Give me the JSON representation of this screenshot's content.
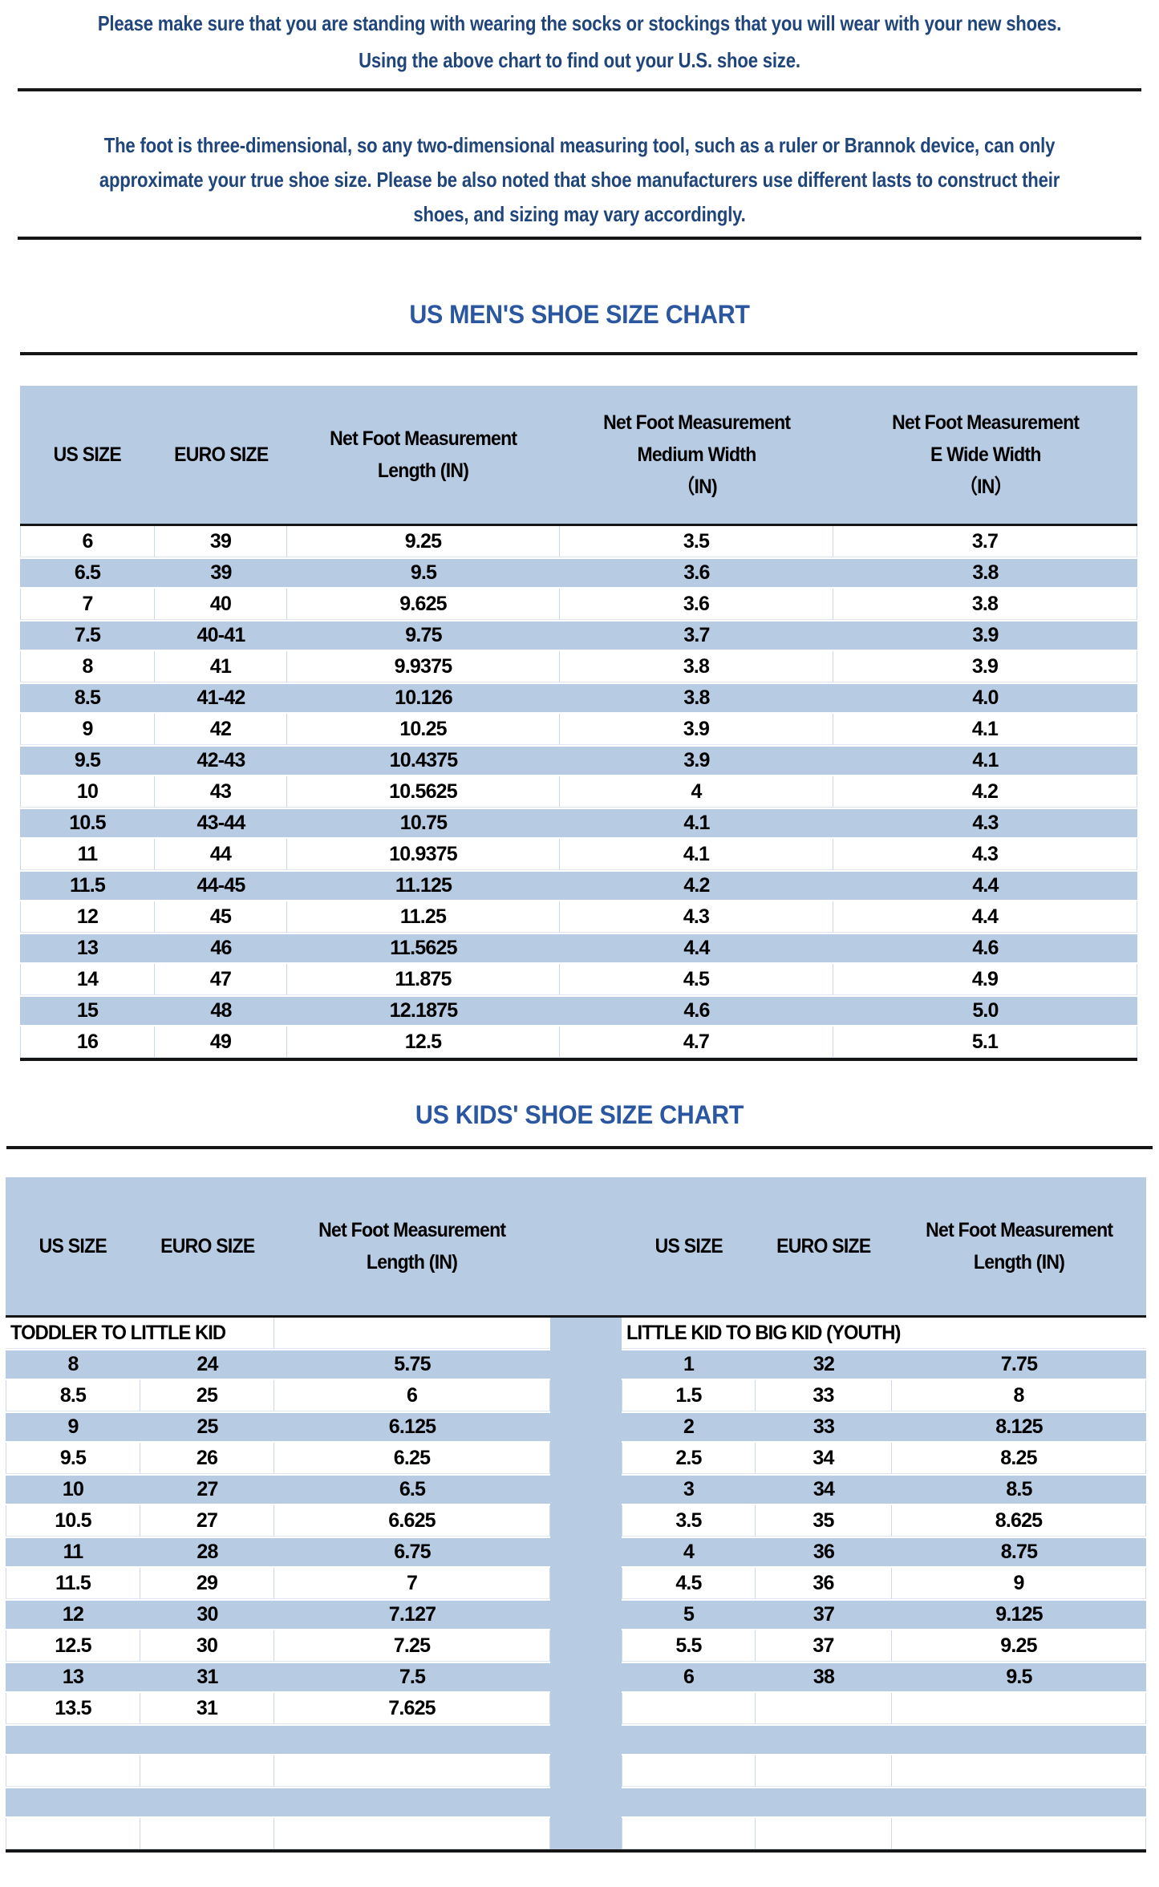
{
  "page": {
    "intro_lines": [
      "Please make sure that you are standing with wearing the socks or stockings that you will wear with your new shoes.",
      "Using the above chart to find out your U.S. shoe size."
    ],
    "note_lines": [
      "The foot is three-dimensional, so any two-dimensional measuring tool, such as a ruler or Brannok device, can only",
      "approximate your true shoe size. Please be also noted that shoe manufacturers use different lasts to construct their",
      "shoes, and sizing may vary accordingly."
    ]
  },
  "mens_chart": {
    "title": "US MEN'S SHOE SIZE CHART",
    "headers": [
      [
        "US SIZE"
      ],
      [
        "EURO SIZE"
      ],
      [
        "Net Foot Measurement",
        "Length (IN)"
      ],
      [
        "Net Foot Measurement",
        "Medium Width",
        "（IN)"
      ],
      [
        "Net Foot Measurement",
        "E Wide Width",
        "（IN）"
      ]
    ],
    "rows": [
      [
        "6",
        "39",
        "9.25",
        "3.5",
        "3.7"
      ],
      [
        "6.5",
        "39",
        "9.5",
        "3.6",
        "3.8"
      ],
      [
        "7",
        "40",
        "9.625",
        "3.6",
        "3.8"
      ],
      [
        "7.5",
        "40-41",
        "9.75",
        "3.7",
        "3.9"
      ],
      [
        "8",
        "41",
        "9.9375",
        "3.8",
        "3.9"
      ],
      [
        "8.5",
        "41-42",
        "10.126",
        "3.8",
        "4.0"
      ],
      [
        "9",
        "42",
        "10.25",
        "3.9",
        "4.1"
      ],
      [
        "9.5",
        "42-43",
        "10.4375",
        "3.9",
        "4.1"
      ],
      [
        "10",
        "43",
        "10.5625",
        "4",
        "4.2"
      ],
      [
        "10.5",
        "43-44",
        "10.75",
        "4.1",
        "4.3"
      ],
      [
        "11",
        "44",
        "10.9375",
        "4.1",
        "4.3"
      ],
      [
        "11.5",
        "44-45",
        "11.125",
        "4.2",
        "4.4"
      ],
      [
        "12",
        "45",
        "11.25",
        "4.3",
        "4.4"
      ],
      [
        "13",
        "46",
        "11.5625",
        "4.4",
        "4.6"
      ],
      [
        "14",
        "47",
        "11.875",
        "4.5",
        "4.9"
      ],
      [
        "15",
        "48",
        "12.1875",
        "4.6",
        "5.0"
      ],
      [
        "16",
        "49",
        "12.5",
        "4.7",
        "5.1"
      ]
    ]
  },
  "kids_chart": {
    "title": "US KIDS' SHOE SIZE CHART",
    "left": {
      "section_label": "TODDLER TO LITTLE KID",
      "headers": [
        [
          "US SIZE"
        ],
        [
          "EURO SIZE"
        ],
        [
          "Net Foot Measurement",
          "Length (IN)"
        ]
      ],
      "rows": [
        [
          "8",
          "24",
          "5.75"
        ],
        [
          "8.5",
          "25",
          "6"
        ],
        [
          "9",
          "25",
          "6.125"
        ],
        [
          "9.5",
          "26",
          "6.25"
        ],
        [
          "10",
          "27",
          "6.5"
        ],
        [
          "10.5",
          "27",
          "6.625"
        ],
        [
          "11",
          "28",
          "6.75"
        ],
        [
          "11.5",
          "29",
          "7"
        ],
        [
          "12",
          "30",
          "7.127"
        ],
        [
          "12.5",
          "30",
          "7.25"
        ],
        [
          "13",
          "31",
          "7.5"
        ],
        [
          "13.5",
          "31",
          "7.625"
        ]
      ],
      "empty_rows": 4
    },
    "right": {
      "section_label": "LITTLE KID TO BIG KID (YOUTH)",
      "headers": [
        [
          "US SIZE"
        ],
        [
          "EURO SIZE"
        ],
        [
          "Net Foot Measurement",
          "Length (IN)"
        ]
      ],
      "rows": [
        [
          "1",
          "32",
          "7.75"
        ],
        [
          "1.5",
          "33",
          "8"
        ],
        [
          "2",
          "33",
          "8.125"
        ],
        [
          "2.5",
          "34",
          "8.25"
        ],
        [
          "3",
          "34",
          "8.5"
        ],
        [
          "3.5",
          "35",
          "8.625"
        ],
        [
          "4",
          "36",
          "8.75"
        ],
        [
          "4.5",
          "36",
          "9"
        ],
        [
          "5",
          "37",
          "9.125"
        ],
        [
          "5.5",
          "37",
          "9.25"
        ],
        [
          "6",
          "38",
          "9.5"
        ]
      ],
      "empty_rows": 5
    }
  },
  "colors": {
    "stripe_blue": "#b7cbe3",
    "title_blue": "#2a57a0",
    "paragraph_blue": "#20457a",
    "cell_border": "#ccd8ea",
    "rule_black": "#161616",
    "cell_text": "#000000"
  }
}
